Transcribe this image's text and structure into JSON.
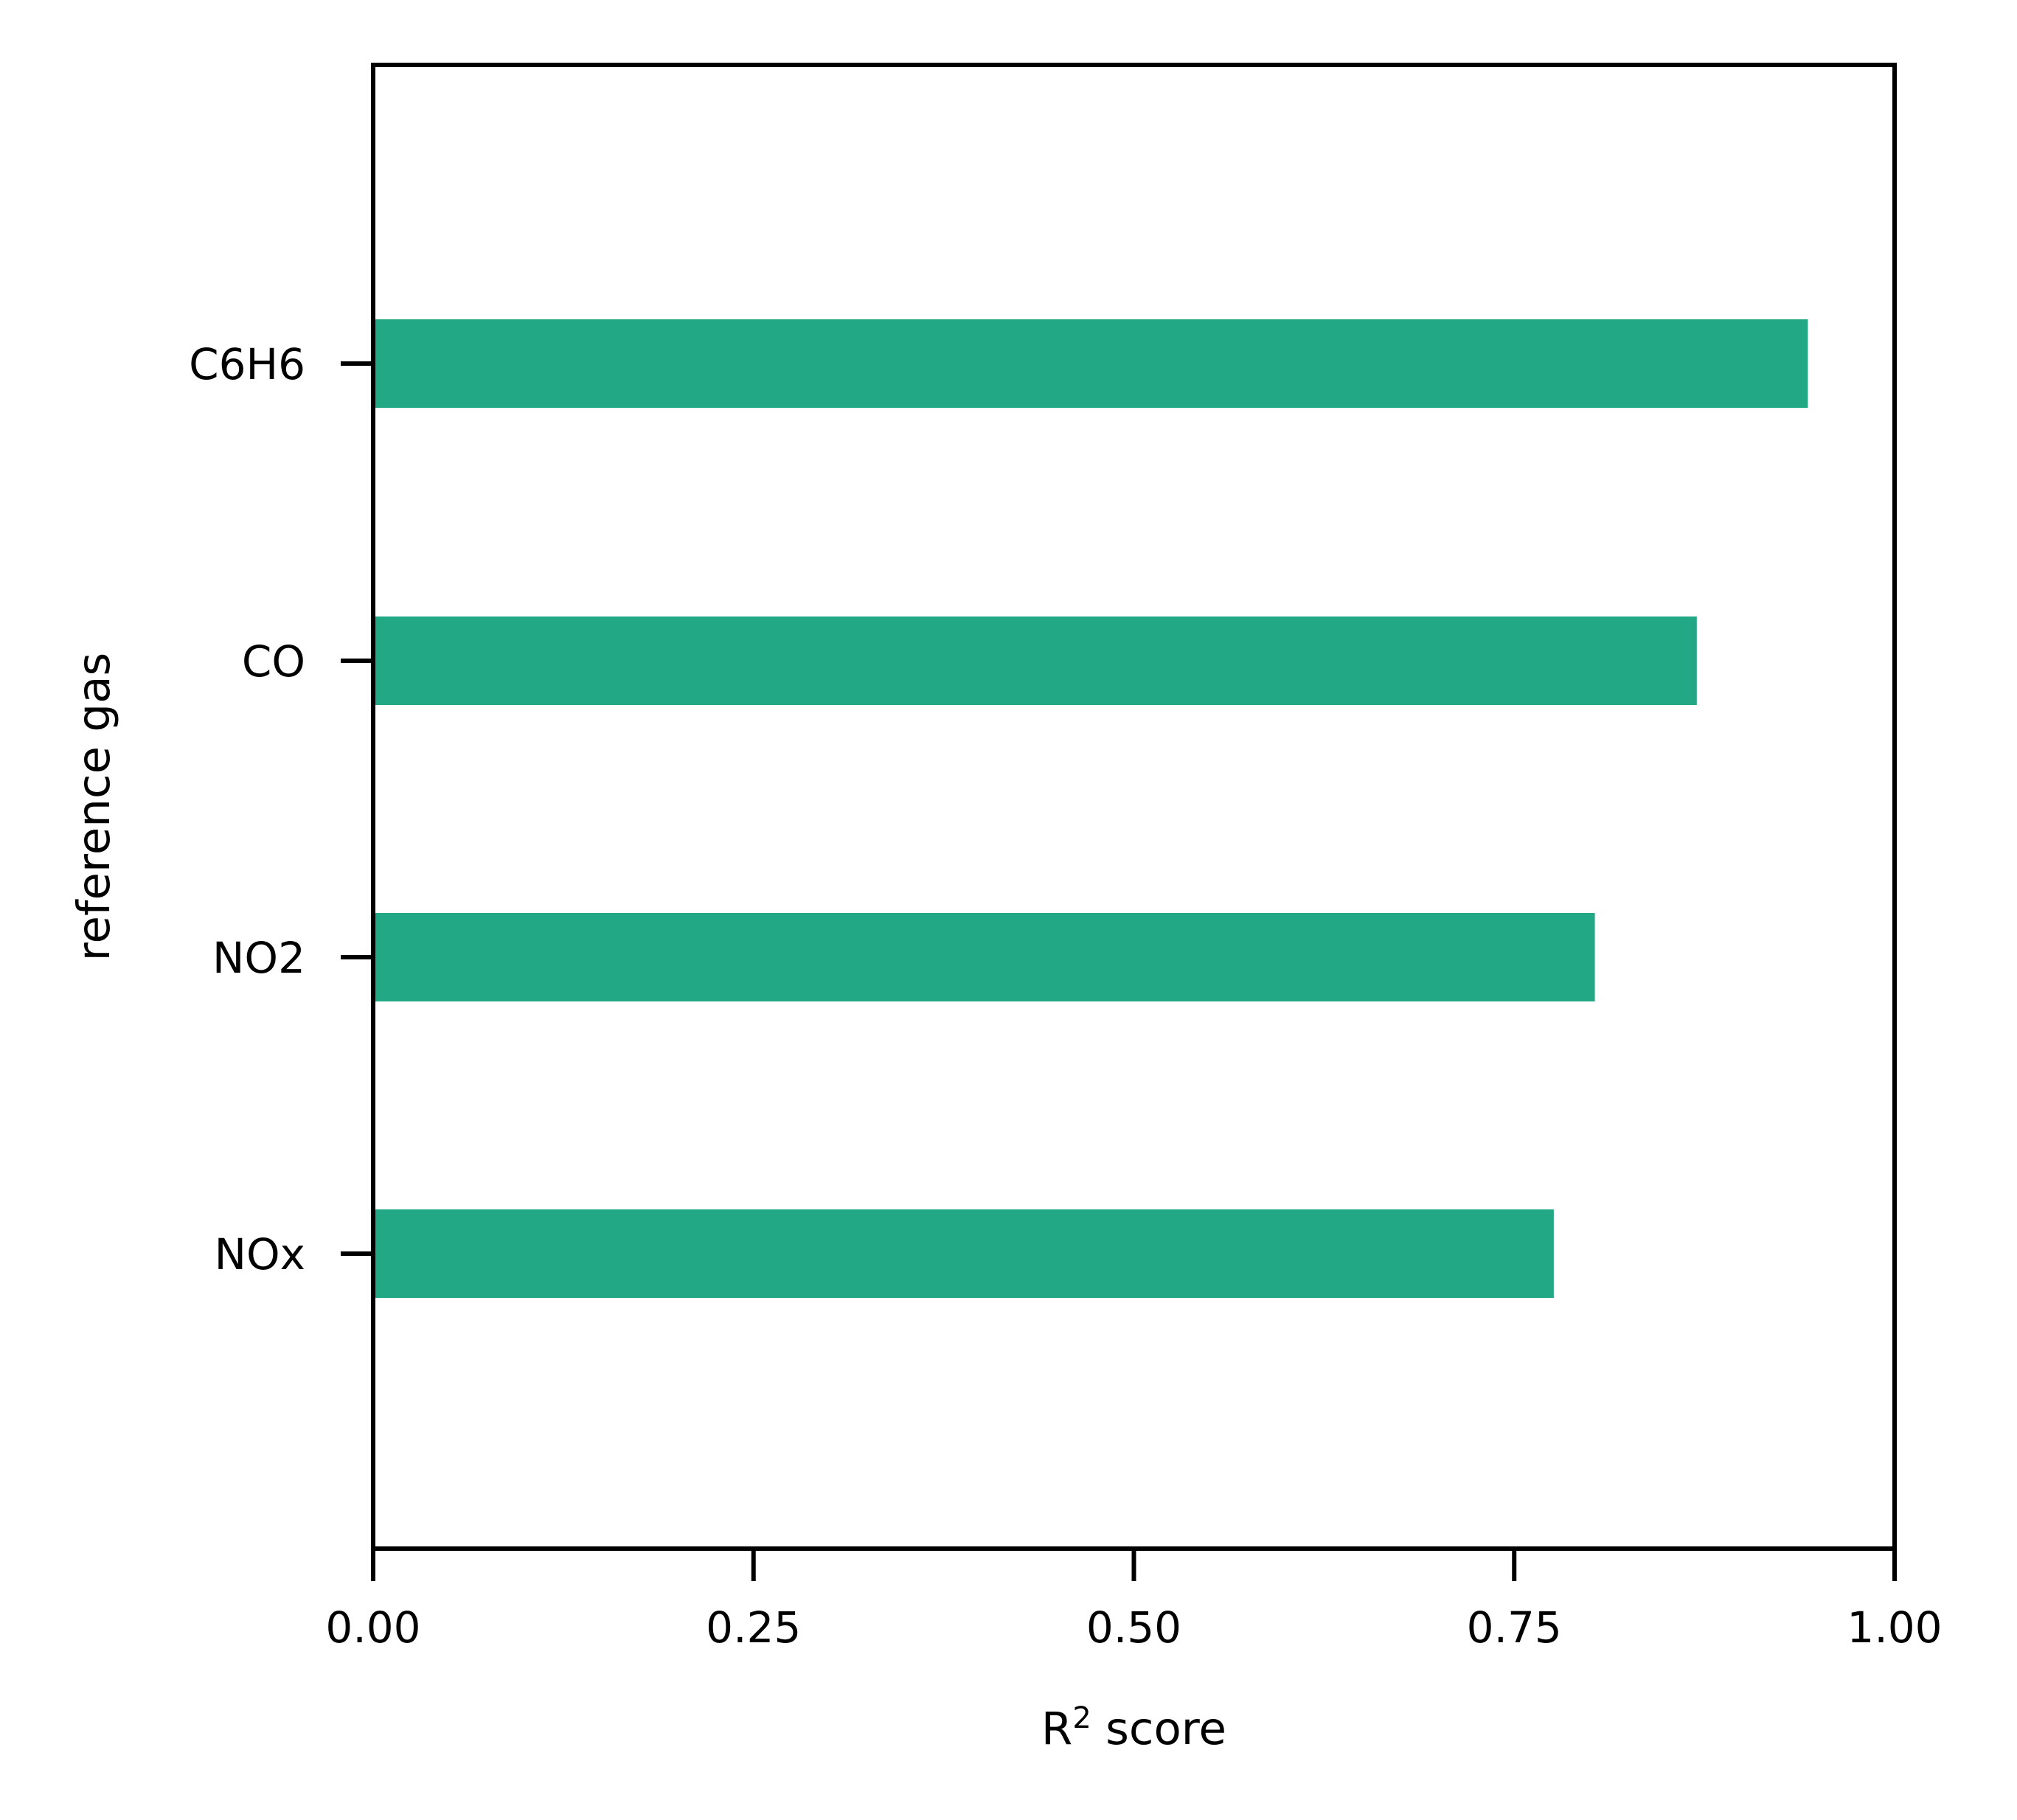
{
  "chart_data": {
    "type": "bar",
    "orientation": "horizontal",
    "categories": [
      "C6H6",
      "CO",
      "NO2",
      "NOx"
    ],
    "values": [
      0.943,
      0.87,
      0.803,
      0.776
    ],
    "xlabel": "R",
    "xlabel_superscript": "2",
    "xlabel_suffix": " score",
    "ylabel": "reference gas",
    "xlim": [
      0,
      1
    ],
    "xticks": [
      "0.00",
      "0.25",
      "0.50",
      "0.75",
      "1.00"
    ],
    "grid": false,
    "bar_color": "#22a884"
  }
}
